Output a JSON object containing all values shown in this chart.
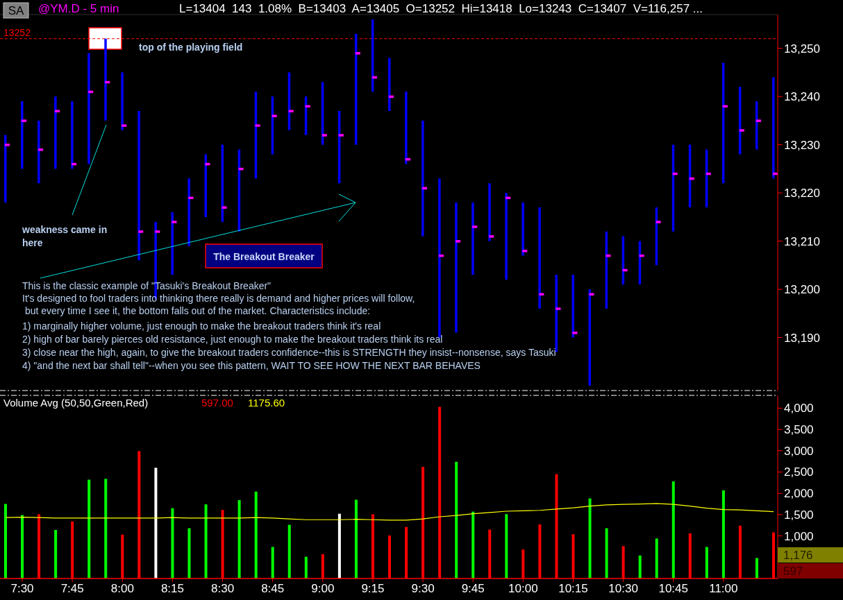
{
  "chart_data": [
    {
      "type": "bar",
      "title": "@YM.D - 5 min",
      "subtitle": "L=13404  143  1.08%  B=13403  A=13405  O=13252  Hi=13418  Lo=13243  C=13407  V=116,257 ...",
      "categories": [
        null,
        null,
        null,
        null,
        null,
        null,
        null,
        null,
        null,
        null,
        null,
        null,
        null,
        null,
        null,
        null,
        null,
        null,
        null,
        null,
        null,
        null,
        null,
        null,
        null,
        null,
        null,
        null,
        null,
        null,
        null,
        null,
        null,
        null,
        null,
        null,
        null,
        null,
        null,
        null,
        null,
        null,
        null,
        null,
        null,
        null,
        null
      ],
      "series": [
        {
          "color": "#0000ff",
          "base": [
            13218,
            13225,
            13222,
            13225,
            13225,
            13226,
            13235,
            13233,
            13206,
            13198,
            13203,
            13209,
            13215,
            13214,
            13212,
            13223,
            13228,
            13233,
            13232,
            13230,
            13222,
            13230,
            13241,
            13237,
            13226,
            13211,
            13190,
            13191,
            13203,
            13210,
            13202,
            13207,
            13196,
            13187,
            13190,
            13180,
            13196,
            13201,
            13201,
            13205,
            13212,
            13217,
            13217,
            13222,
            13228,
            13229,
            13223
          ],
          "values": [
            14,
            14,
            13,
            15,
            14,
            23,
            17,
            12,
            31,
            16,
            13,
            14,
            13,
            16,
            17,
            18,
            12,
            12,
            8,
            13,
            15,
            23,
            15,
            11,
            15,
            24,
            33,
            27,
            15,
            12,
            18,
            11,
            21,
            16,
            13,
            20,
            16,
            10,
            9,
            12,
            18,
            13,
            12,
            25,
            14,
            10,
            21
          ]
        },
        {
          "type": "scatter",
          "color": "#ff00ff",
          "values": [
            13230,
            13235,
            13229,
            13237,
            13226,
            13241,
            13243,
            13234,
            13212,
            13212,
            13214,
            13219,
            13226,
            13217,
            13225,
            13234,
            13236,
            13237,
            13238,
            13232,
            13232,
            13249,
            13244,
            13240,
            13227,
            13221,
            13207,
            13210,
            13213,
            13211,
            13219,
            13208,
            13199,
            13196,
            13191,
            13199,
            13207,
            13204,
            13207,
            13214,
            13224,
            13223,
            13224,
            13238,
            13233,
            13235,
            13224
          ]
        }
      ],
      "marker": "square",
      "ylim": [
        13179,
        13257
      ],
      "yticks": [
        {
          "value": 13190,
          "label": "13,190"
        },
        {
          "value": 13200,
          "label": "13,200"
        },
        {
          "value": 13210,
          "label": "13,210"
        },
        {
          "value": 13220,
          "label": "13,220"
        },
        {
          "value": 13230,
          "label": "13,230"
        },
        {
          "value": 13240,
          "label": "13,240"
        },
        {
          "value": 13250,
          "label": "13,250"
        }
      ],
      "tick_labels": "y",
      "ref_lines": [
        {
          "axis": "y",
          "value": 13252,
          "label": "13252",
          "color": "#ff0000",
          "line_style": "dashed"
        }
      ],
      "annotations": [
        "SA",
        "top of the playing field",
        "weakness came in here",
        "The Breakout Breaker",
        "This is the classic example of \"Tasuki's Breakout Breaker\"",
        "It's designed to fool traders into thinking there really is demand and higher prices will follow,",
        " but every time I see it, the bottom falls out of the market. Characteristics include:",
        "1) marginally higher volume, just enough to make the breakout traders think it's real",
        "2) high of bar barely pierces old resistance, just enough to make the breakout traders think its real",
        "3) close near the high, again, to give the breakout traders confidence--this is STRENGTH they insist--nonsense, says Tasuki",
        "4) \"and the next bar shall tell\"--when you see this pattern, WAIT TO SEE HOW THE NEXT BAR BEHAVES"
      ]
    },
    {
      "type": "bar",
      "title": "Volume Avg (50,50,Green,Red)",
      "categories": [
        null,
        "7:30",
        null,
        null,
        "7:45",
        null,
        null,
        "8:00",
        null,
        null,
        "8:15",
        null,
        null,
        "8:30",
        null,
        null,
        "8:45",
        null,
        null,
        "9:00",
        null,
        null,
        "9:15",
        null,
        null,
        "9:30",
        null,
        null,
        "9:45",
        null,
        null,
        "10:00",
        null,
        null,
        "10:15",
        null,
        null,
        "10:30",
        null,
        null,
        "10:45",
        null,
        null,
        "11:00",
        null,
        null,
        null
      ],
      "series": [
        {
          "values": [
            1750,
            1490,
            1510,
            1140,
            1340,
            2320,
            2340,
            1030,
            2990,
            2600,
            1650,
            1180,
            1740,
            1610,
            1840,
            2040,
            740,
            1260,
            510,
            570,
            1520,
            1850,
            1510,
            1010,
            1210,
            2620,
            4030,
            2740,
            1570,
            1150,
            1510,
            680,
            1270,
            2450,
            1040,
            1880,
            1180,
            760,
            540,
            940,
            2280,
            1060,
            740,
            2070,
            1240,
            480,
            1080
          ],
          "colors": [
            "#00ff00",
            "#00ff00",
            "#ff0000",
            "#00ff00",
            "#ff0000",
            "#00ff00",
            "#00ff00",
            "#ff0000",
            "#ff0000",
            "#ffffff",
            "#00ff00",
            "#00ff00",
            "#00ff00",
            "#ff0000",
            "#00ff00",
            "#00ff00",
            "#00ff00",
            "#00ff00",
            "#00ff00",
            "#ff0000",
            "#ffffff",
            "#00ff00",
            "#ff0000",
            "#ff0000",
            "#ff0000",
            "#ff0000",
            "#ff0000",
            "#00ff00",
            "#00ff00",
            "#ff0000",
            "#00ff00",
            "#ff0000",
            "#ff0000",
            "#ff0000",
            "#ff0000",
            "#00ff00",
            "#00ff00",
            "#ff0000",
            "#00ff00",
            "#00ff00",
            "#00ff00",
            "#ff0000",
            "#00ff00",
            "#00ff00",
            "#ff0000",
            "#00ff00",
            "#ff0000"
          ]
        },
        {
          "type": "line",
          "color": "#ffff00",
          "values": [
            1430,
            1440,
            1430,
            1420,
            1420,
            1420,
            1420,
            1420,
            1420,
            1420,
            1430,
            1420,
            1420,
            1420,
            1420,
            1430,
            1420,
            1400,
            1380,
            1380,
            1380,
            1390,
            1380,
            1370,
            1370,
            1400,
            1450,
            1480,
            1520,
            1550,
            1580,
            1590,
            1600,
            1630,
            1660,
            1700,
            1730,
            1740,
            1750,
            1760,
            1740,
            1700,
            1650,
            1620,
            1610,
            1590,
            1570
          ]
        }
      ],
      "ylim": [
        0,
        4300
      ],
      "yticks": [
        {
          "value": 1000,
          "label": "1,000"
        },
        {
          "value": 1500,
          "label": "1,500"
        },
        {
          "value": 2000,
          "label": "2,000"
        },
        {
          "value": 2500,
          "label": "2,500"
        },
        {
          "value": 3000,
          "label": "3,000"
        },
        {
          "value": 3500,
          "label": "3,500"
        },
        {
          "value": 4000,
          "label": "4,000"
        }
      ],
      "annotations": [
        "597.00",
        "1175.60",
        "1,176",
        "597"
      ]
    }
  ]
}
